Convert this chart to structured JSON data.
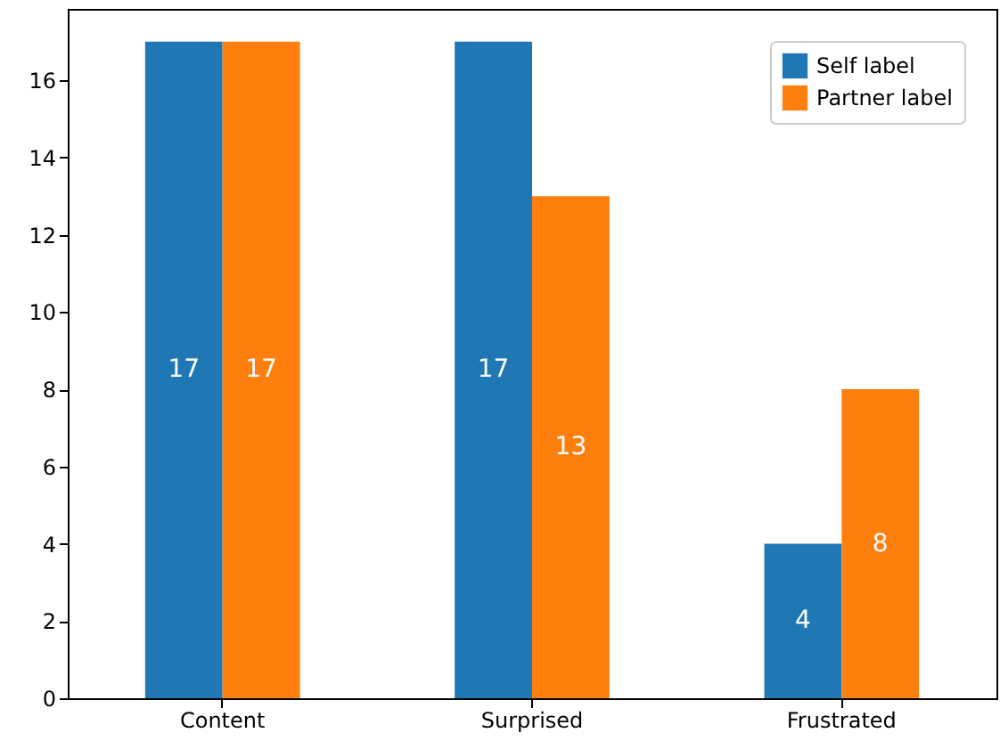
{
  "chart_data": {
    "type": "bar",
    "categories": [
      "Content",
      "Surprised",
      "Frustrated"
    ],
    "series": [
      {
        "name": "Self label",
        "color": "#1f77b4",
        "values": [
          17,
          17,
          4
        ]
      },
      {
        "name": "Partner label",
        "color": "#ff7f0e",
        "values": [
          17,
          13,
          8
        ]
      }
    ],
    "ylim": [
      0,
      17.85
    ],
    "yticks": [
      0,
      2,
      4,
      6,
      8,
      10,
      12,
      14,
      16
    ],
    "data_labels": true,
    "legend": "top right",
    "grid": false
  }
}
